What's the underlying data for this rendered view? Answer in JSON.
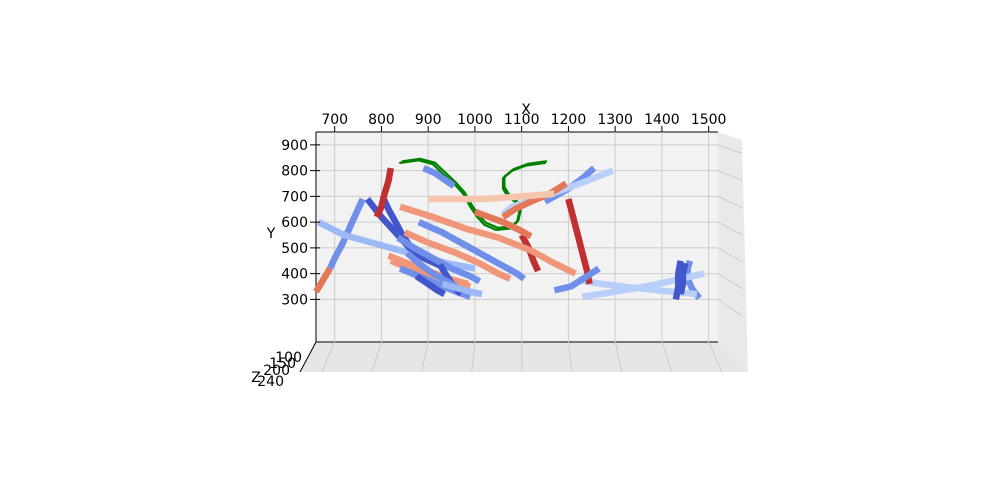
{
  "chart_data": {
    "type": "3d-line",
    "title": "",
    "xlabel": "X",
    "ylabel": "Y",
    "zlabel": "Z",
    "xlim": [
      660,
      1520
    ],
    "ylim": [
      220,
      950
    ],
    "x_ticks": [
      "700",
      "800",
      "900",
      "1000",
      "1100",
      "1200",
      "1300",
      "1400",
      "1500"
    ],
    "y_ticks": [
      "300",
      "400",
      "500",
      "600",
      "700",
      "800",
      "900"
    ],
    "z_ticks": [
      "100",
      "150",
      "200",
      "240"
    ],
    "grid": true,
    "colors": {
      "pane": "#f2f2f2",
      "grid": "#cccccc",
      "green": "#008000",
      "dark_blue": "#4257cc",
      "mid_blue": "#6f8fe8",
      "light_blue": "#9db9f5",
      "pale_blue": "#b7cff9",
      "peach": "#f3c6ad",
      "salmon": "#f0967a",
      "coral": "#e57759",
      "dark_red": "#c03030"
    },
    "series": [
      {
        "color": "mid_blue",
        "points": [
          [
            1480,
            305
          ],
          [
            1465,
            340
          ],
          [
            1455,
            380
          ],
          [
            1455,
            420
          ],
          [
            1460,
            450
          ]
        ]
      },
      {
        "color": "pale_blue",
        "points": [
          [
            1475,
            320
          ],
          [
            1420,
            330
          ],
          [
            1340,
            345
          ],
          [
            1270,
            360
          ],
          [
            1220,
            375
          ]
        ]
      },
      {
        "color": "pale_blue",
        "points": [
          [
            1230,
            310
          ],
          [
            1300,
            330
          ],
          [
            1380,
            355
          ],
          [
            1440,
            380
          ],
          [
            1490,
            400
          ]
        ]
      },
      {
        "color": "dark_red",
        "points": [
          [
            1200,
            690
          ],
          [
            1210,
            620
          ],
          [
            1220,
            550
          ],
          [
            1230,
            480
          ],
          [
            1240,
            410
          ],
          [
            1245,
            360
          ]
        ]
      },
      {
        "color": "dark_red",
        "points": [
          [
            1100,
            550
          ],
          [
            1115,
            500
          ],
          [
            1125,
            450
          ],
          [
            1135,
            410
          ]
        ]
      },
      {
        "color": "mid_blue",
        "points": [
          [
            1170,
            335
          ],
          [
            1205,
            350
          ],
          [
            1240,
            390
          ],
          [
            1265,
            420
          ]
        ]
      },
      {
        "color": "mid_blue",
        "points": [
          [
            1255,
            810
          ],
          [
            1230,
            770
          ],
          [
            1200,
            730
          ],
          [
            1170,
            700
          ],
          [
            1150,
            680
          ]
        ]
      },
      {
        "color": "pale_blue",
        "points": [
          [
            1295,
            800
          ],
          [
            1240,
            760
          ],
          [
            1180,
            720
          ],
          [
            1130,
            690
          ],
          [
            1080,
            660
          ],
          [
            1060,
            630
          ]
        ]
      },
      {
        "color": "coral",
        "points": [
          [
            1195,
            750
          ],
          [
            1160,
            710
          ],
          [
            1120,
            680
          ],
          [
            1085,
            650
          ],
          [
            1060,
            620
          ]
        ]
      },
      {
        "color": "peach",
        "points": [
          [
            1170,
            710
          ],
          [
            1100,
            700
          ],
          [
            1020,
            690
          ],
          [
            960,
            690
          ],
          [
            900,
            690
          ]
        ]
      },
      {
        "color": "coral",
        "points": [
          [
            1000,
            640
          ],
          [
            1030,
            620
          ],
          [
            1060,
            600
          ],
          [
            1095,
            570
          ],
          [
            1120,
            545
          ]
        ]
      },
      {
        "color": "salmon",
        "points": [
          [
            840,
            660
          ],
          [
            910,
            620
          ],
          [
            980,
            575
          ],
          [
            1050,
            540
          ],
          [
            1120,
            490
          ],
          [
            1170,
            440
          ],
          [
            1215,
            400
          ]
        ]
      },
      {
        "color": "mid_blue",
        "points": [
          [
            880,
            600
          ],
          [
            930,
            560
          ],
          [
            990,
            500
          ],
          [
            1050,
            440
          ],
          [
            1090,
            400
          ],
          [
            1105,
            380
          ]
        ]
      },
      {
        "color": "dark_blue",
        "points": [
          [
            805,
            690
          ],
          [
            815,
            650
          ],
          [
            830,
            600
          ],
          [
            845,
            550
          ],
          [
            860,
            510
          ],
          [
            880,
            480
          ]
        ]
      },
      {
        "color": "mid_blue",
        "points": [
          [
            760,
            690
          ],
          [
            745,
            630
          ],
          [
            730,
            570
          ],
          [
            715,
            510
          ],
          [
            700,
            460
          ],
          [
            690,
            420
          ]
        ]
      },
      {
        "color": "coral",
        "points": [
          [
            690,
            420
          ],
          [
            680,
            390
          ],
          [
            670,
            360
          ],
          [
            660,
            330
          ]
        ]
      },
      {
        "color": "light_blue",
        "points": [
          [
            665,
            600
          ],
          [
            720,
            550
          ],
          [
            800,
            510
          ],
          [
            880,
            470
          ],
          [
            940,
            440
          ],
          [
            1000,
            420
          ]
        ]
      },
      {
        "color": "dark_blue",
        "points": [
          [
            770,
            690
          ],
          [
            800,
            620
          ],
          [
            830,
            560
          ],
          [
            860,
            500
          ],
          [
            890,
            460
          ],
          [
            940,
            420
          ]
        ]
      },
      {
        "color": "salmon",
        "points": [
          [
            850,
            560
          ],
          [
            900,
            520
          ],
          [
            960,
            480
          ],
          [
            1010,
            440
          ],
          [
            1050,
            400
          ],
          [
            1075,
            380
          ]
        ]
      },
      {
        "color": "mid_blue",
        "points": [
          [
            835,
            540
          ],
          [
            870,
            500
          ],
          [
            910,
            460
          ],
          [
            950,
            420
          ],
          [
            990,
            390
          ],
          [
            1010,
            370
          ]
        ]
      },
      {
        "color": "salmon",
        "points": [
          [
            820,
            450
          ],
          [
            860,
            420
          ],
          [
            900,
            400
          ],
          [
            950,
            370
          ],
          [
            990,
            350
          ]
        ]
      },
      {
        "color": "mid_blue",
        "points": [
          [
            840,
            420
          ],
          [
            880,
            390
          ],
          [
            920,
            360
          ],
          [
            960,
            330
          ],
          [
            990,
            310
          ]
        ]
      },
      {
        "color": "salmon",
        "points": [
          [
            815,
            470
          ],
          [
            855,
            440
          ],
          [
            900,
            410
          ],
          [
            945,
            380
          ],
          [
            985,
            360
          ]
        ]
      },
      {
        "color": "dark_blue",
        "points": [
          [
            925,
            435
          ],
          [
            940,
            390
          ],
          [
            955,
            350
          ],
          [
            970,
            320
          ]
        ]
      },
      {
        "color": "dark_blue",
        "points": [
          [
            875,
            390
          ],
          [
            900,
            360
          ],
          [
            920,
            335
          ],
          [
            935,
            320
          ]
        ]
      },
      {
        "color": "mid_blue",
        "points": [
          [
            855,
            480
          ],
          [
            880,
            440
          ],
          [
            910,
            400
          ],
          [
            940,
            370
          ],
          [
            960,
            350
          ]
        ]
      },
      {
        "color": "light_blue",
        "points": [
          [
            930,
            360
          ],
          [
            960,
            345
          ],
          [
            990,
            330
          ],
          [
            1015,
            320
          ]
        ]
      },
      {
        "color": "dark_red",
        "points": [
          [
            820,
            810
          ],
          [
            815,
            760
          ],
          [
            805,
            700
          ],
          [
            800,
            660
          ],
          [
            790,
            620
          ]
        ]
      },
      {
        "color": "mid_blue",
        "points": [
          [
            890,
            810
          ],
          [
            915,
            790
          ],
          [
            935,
            765
          ],
          [
            955,
            740
          ]
        ]
      },
      {
        "color": "dark_blue",
        "points": [
          [
            1440,
            450
          ],
          [
            1435,
            400
          ],
          [
            1435,
            350
          ],
          [
            1430,
            300
          ]
        ]
      },
      {
        "color": "dark_blue",
        "points": [
          [
            1450,
            440
          ],
          [
            1445,
            400
          ],
          [
            1445,
            360
          ],
          [
            1440,
            320
          ]
        ]
      }
    ],
    "green_loops": [
      {
        "color": "green",
        "points": [
          [
            840,
            830
          ],
          [
            880,
            840
          ],
          [
            910,
            825
          ],
          [
            930,
            790
          ],
          [
            955,
            750
          ],
          [
            975,
            710
          ],
          [
            990,
            660
          ],
          [
            1005,
            620
          ],
          [
            1020,
            590
          ],
          [
            1045,
            570
          ],
          [
            1075,
            575
          ],
          [
            1090,
            600
          ],
          [
            1095,
            640
          ],
          [
            1085,
            680
          ],
          [
            1070,
            700
          ],
          [
            1060,
            730
          ],
          [
            1060,
            770
          ],
          [
            1080,
            800
          ],
          [
            1110,
            820
          ],
          [
            1150,
            830
          ]
        ]
      },
      {
        "color": "green",
        "points": [
          [
            845,
            836
          ],
          [
            882,
            846
          ],
          [
            914,
            831
          ],
          [
            934,
            797
          ],
          [
            958,
            756
          ],
          [
            978,
            716
          ],
          [
            993,
            667
          ],
          [
            1008,
            627
          ],
          [
            1024,
            597
          ],
          [
            1049,
            578
          ],
          [
            1078,
            583
          ],
          [
            1093,
            607
          ],
          [
            1098,
            647
          ],
          [
            1088,
            687
          ],
          [
            1073,
            707
          ],
          [
            1063,
            737
          ],
          [
            1063,
            777
          ],
          [
            1083,
            806
          ],
          [
            1113,
            826
          ],
          [
            1152,
            836
          ]
        ]
      }
    ]
  }
}
